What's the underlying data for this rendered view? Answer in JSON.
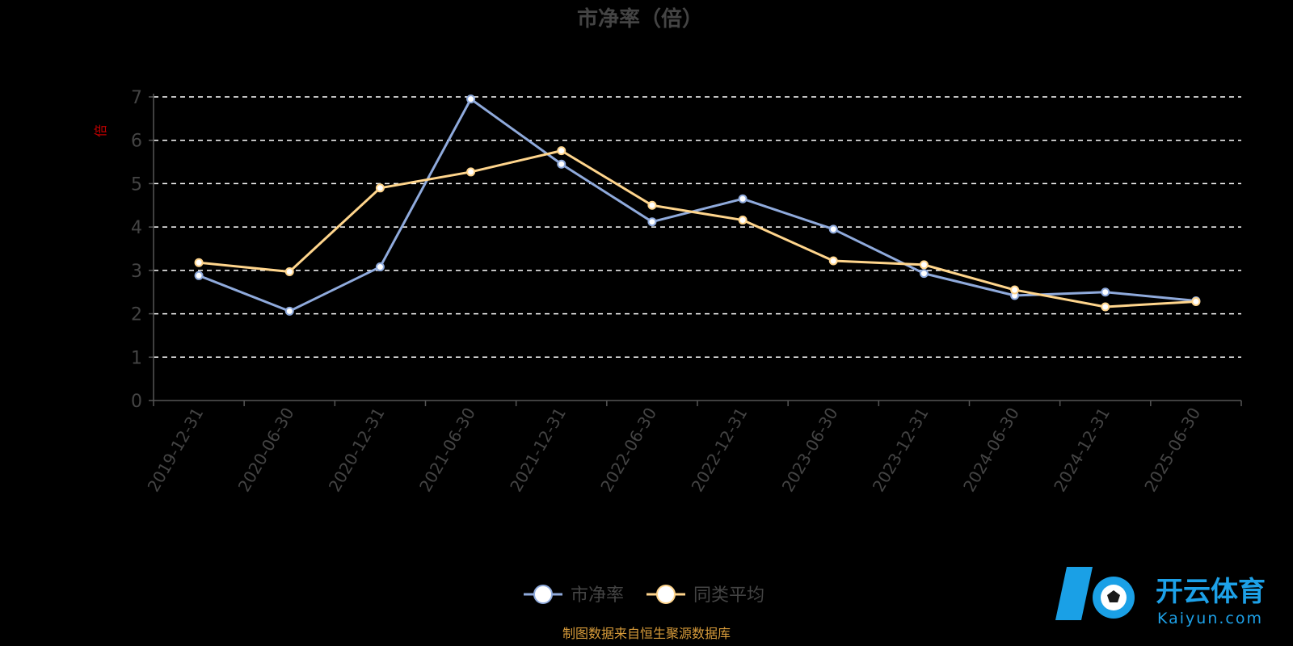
{
  "chart_data": {
    "type": "line",
    "title": "市净率（倍）",
    "ylabel": "倍",
    "ylim": [
      0,
      7
    ],
    "yticks": [
      0,
      1,
      2,
      3,
      4,
      5,
      6,
      7
    ],
    "grid": true,
    "legend_position": "bottom-center",
    "categories": [
      "2019-12-31",
      "2020-06-30",
      "2020-12-31",
      "2021-06-30",
      "2021-12-31",
      "2022-06-30",
      "2022-12-31",
      "2023-06-30",
      "2023-12-31",
      "2024-06-30",
      "2024-12-31",
      "2025-06-30"
    ],
    "series": [
      {
        "name": "市净率",
        "color": "#8faadc",
        "values": [
          2.88,
          2.06,
          3.08,
          6.95,
          5.45,
          4.12,
          4.65,
          3.95,
          2.93,
          2.42,
          2.5,
          2.3
        ]
      },
      {
        "name": "同类平均",
        "color": "#ffd58c",
        "values": [
          3.18,
          2.97,
          4.9,
          5.27,
          5.76,
          4.5,
          4.16,
          3.22,
          3.13,
          2.55,
          2.16,
          2.28
        ]
      }
    ]
  },
  "footer": "制图数据来自恒生聚源数据库",
  "watermark": {
    "name": "开云体育",
    "site": "Kaiyun.com"
  }
}
